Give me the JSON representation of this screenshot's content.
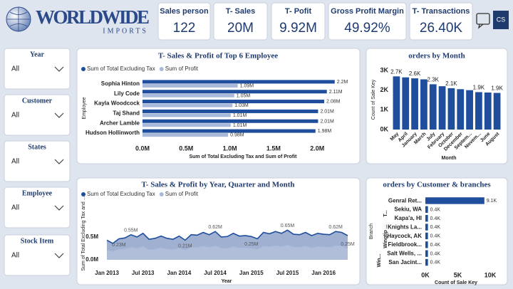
{
  "header": {
    "logo_title": "WORLDWIDE",
    "logo_subtitle": "IMPORTS",
    "user_initials": "CS"
  },
  "kpis": [
    {
      "label": "Sales person",
      "value": "122"
    },
    {
      "label": "T- Sales",
      "value": "20M"
    },
    {
      "label": "T- Pofit",
      "value": "9.92M"
    },
    {
      "label": "Gross Profit Margin",
      "value": "49.92%"
    },
    {
      "label": "T- Transactions",
      "value": "26.40K"
    }
  ],
  "slicers": [
    {
      "label": "Year",
      "selection": "All"
    },
    {
      "label": "Customer",
      "selection": "All"
    },
    {
      "label": "States",
      "selection": "All"
    },
    {
      "label": "Employee",
      "selection": "All"
    },
    {
      "label": "Stock Item",
      "selection": "All"
    }
  ],
  "chart_data": [
    {
      "type": "bar",
      "orientation": "horizontal",
      "title": "T- Sales & Profit of Top 6 Employee",
      "y_label": "Employee",
      "x_label": "Sum of Total Excluding Tax and Sum of Profit",
      "legend": "top-left",
      "categories": [
        "Sophia Hinton",
        "Lily Code",
        "Kayla Woodcock",
        "Taj Shand",
        "Archer Lamble",
        "Hudson Hollinworth"
      ],
      "series": [
        {
          "name": "Sum of Total Excluding Tax",
          "color": "#1f4e9c",
          "values": [
            2.2,
            2.11,
            2.08,
            2.01,
            2.01,
            1.98
          ],
          "value_labels": [
            "2.2M",
            "2.11M",
            "2.08M",
            "2.01M",
            "2.01M",
            "1.98M"
          ]
        },
        {
          "name": "Sum of Profit",
          "color": "#a9b9d9",
          "values": [
            1.09,
            1.05,
            1.03,
            1.01,
            1.01,
            0.98
          ],
          "value_labels": [
            "1.09M",
            "1.05M",
            "1.03M",
            "1.01M",
            "1.01M",
            "0.98M"
          ]
        }
      ],
      "xlim": [
        0,
        2.3
      ],
      "xticks": [
        {
          "value": 0,
          "label": "0.0M"
        },
        {
          "value": 0.5,
          "label": "0.5M"
        },
        {
          "value": 1,
          "label": "1.0M"
        },
        {
          "value": 1.5,
          "label": "1.5M"
        },
        {
          "value": 2,
          "label": "2.0M"
        }
      ]
    },
    {
      "type": "bar",
      "orientation": "vertical",
      "title": "orders by Month",
      "y_label": "Count of Sale Key",
      "x_label": "Month",
      "categories": [
        "May",
        "April",
        "January",
        "March",
        "July",
        "February",
        "October",
        "December",
        "Septem...",
        "Novem...",
        "June",
        "August"
      ],
      "values": [
        2.7,
        2.65,
        2.6,
        2.55,
        2.3,
        2.2,
        2.1,
        2.05,
        2.0,
        1.9,
        1.88,
        1.86
      ],
      "value_labels": [
        "2.7K",
        null,
        "2.6K",
        null,
        "2.3K",
        null,
        "2.1K",
        null,
        null,
        "1.9K",
        null,
        "1.9K"
      ],
      "color": "#1f4e9c",
      "ylim": [
        0,
        3
      ],
      "yticks": [
        {
          "value": 0,
          "label": "0K"
        },
        {
          "value": 1,
          "label": "1K"
        },
        {
          "value": 2,
          "label": "2K"
        },
        {
          "value": 3,
          "label": "3K"
        }
      ]
    },
    {
      "type": "area",
      "title": "T- Sales & Profit by Year, Quarter and Month",
      "y_label": "Sum of Total Excluding Tax and ...",
      "x_label": "Year",
      "legend": "top-left",
      "categories": [
        "Jan 2013",
        null,
        null,
        null,
        null,
        null,
        "Jul 2013",
        null,
        null,
        null,
        null,
        null,
        "Jan 2014",
        null,
        null,
        null,
        null,
        null,
        "Jul 2014",
        null,
        null,
        null,
        null,
        null,
        "Jan 2015",
        null,
        null,
        null,
        null,
        null,
        "Jul 2015",
        null,
        null,
        null,
        null,
        null,
        "Jan 2016",
        null,
        null,
        null,
        null
      ],
      "series": [
        {
          "name": "Sum of Total Excluding Tax",
          "color": "#1f4e9c",
          "values": [
            0.43,
            0.36,
            0.46,
            0.48,
            0.55,
            0.5,
            0.58,
            0.45,
            0.47,
            0.52,
            0.47,
            0.45,
            0.52,
            0.43,
            0.55,
            0.54,
            0.6,
            0.55,
            0.62,
            0.5,
            0.51,
            0.58,
            0.52,
            0.53,
            0.51,
            0.46,
            0.6,
            0.57,
            0.62,
            0.58,
            0.65,
            0.56,
            0.55,
            0.6,
            0.53,
            0.58,
            0.56,
            0.55,
            0.62,
            0.6,
            0.53
          ],
          "value_labels": [
            null,
            null,
            null,
            null,
            "0.55M",
            null,
            null,
            null,
            null,
            null,
            null,
            null,
            null,
            null,
            null,
            null,
            null,
            null,
            "0.62M",
            null,
            null,
            null,
            null,
            null,
            null,
            null,
            null,
            null,
            null,
            null,
            "0.65M",
            null,
            null,
            null,
            null,
            null,
            null,
            null,
            "0.62M",
            null,
            null
          ]
        },
        {
          "name": "Sum of Profit",
          "color": "#a9b9d9",
          "values": [
            0.21,
            0.18,
            0.23,
            0.24,
            0.27,
            0.25,
            0.29,
            0.22,
            0.23,
            0.26,
            0.23,
            0.22,
            0.26,
            0.21,
            0.27,
            0.27,
            0.3,
            0.27,
            0.31,
            0.25,
            0.25,
            0.29,
            0.26,
            0.26,
            0.25,
            0.23,
            0.3,
            0.28,
            0.31,
            0.29,
            0.32,
            0.28,
            0.27,
            0.3,
            0.26,
            0.29,
            0.28,
            0.27,
            0.31,
            0.3,
            0.25
          ],
          "value_labels": [
            null,
            null,
            "0.23M",
            null,
            null,
            null,
            null,
            null,
            null,
            null,
            null,
            null,
            null,
            "0.21M",
            null,
            null,
            null,
            null,
            null,
            null,
            null,
            null,
            null,
            null,
            "0.25M",
            null,
            null,
            null,
            null,
            null,
            null,
            null,
            null,
            null,
            null,
            null,
            null,
            null,
            null,
            null,
            "0.25M"
          ]
        }
      ],
      "ylim": [
        0,
        1.2
      ],
      "yticks": [
        {
          "value": 0,
          "label": "0.0M"
        },
        {
          "value": 0.5,
          "label": "0.5M"
        }
      ]
    },
    {
      "type": "bar",
      "orientation": "horizontal",
      "title": "orders by Customer & branches",
      "y_label": "Branch",
      "x_label": "Count of Sale Key",
      "group_labels": [
        "T...",
        "Wingtip ...",
        "Win..."
      ],
      "categories": [
        "Genral Ret...",
        "Sekiu, WA",
        "Kapa'a, HI",
        "Knights La...",
        "Haycock, AK",
        "Fieldbrook...",
        "Salt Wells, ...",
        "San Jacint..."
      ],
      "values": [
        9.1,
        0.4,
        0.4,
        0.4,
        0.4,
        0.4,
        0.4,
        0.4
      ],
      "value_labels": [
        "9.1K",
        "0.4K",
        "0.4K",
        "0.4K",
        "0.4K",
        "0.4K",
        "0.4K",
        "0.4K"
      ],
      "color": "#1f4e9c",
      "xlim": [
        0,
        10
      ],
      "xticks": [
        {
          "value": 0,
          "label": "0K"
        },
        {
          "value": 5,
          "label": "5K"
        },
        {
          "value": 10,
          "label": "10K"
        }
      ]
    }
  ]
}
